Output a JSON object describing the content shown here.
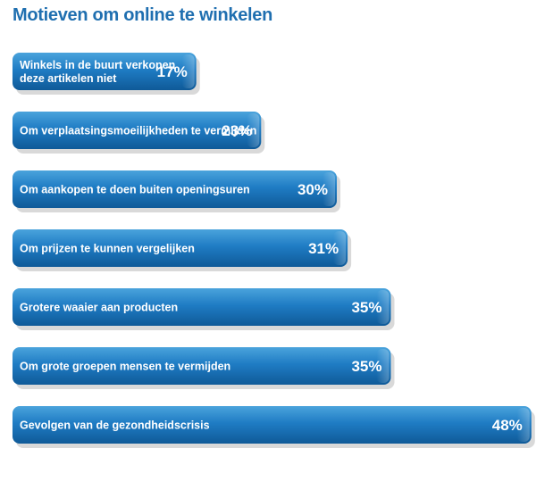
{
  "chart_data": {
    "type": "bar",
    "orientation": "horizontal",
    "title": "Motieven om online te winkelen",
    "categories": [
      [
        "Winkels in de buurt verkopen",
        "deze artikelen niet"
      ],
      [
        "Om verplaatsingsmoeilijkheden te vermijden"
      ],
      [
        "Om aankopen te doen buiten openingsuren"
      ],
      [
        "Om prijzen te kunnen vergelijken"
      ],
      [
        "Grotere waaier aan producten"
      ],
      [
        "Om grote groepen mensen te vermijden"
      ],
      [
        "Gevolgen van de gezondheidscrisis"
      ]
    ],
    "values": [
      17,
      23,
      30,
      31,
      35,
      35,
      48
    ],
    "value_labels": [
      "17%",
      "23%",
      "30%",
      "31%",
      "35%",
      "35%",
      "48%"
    ],
    "colors": {
      "title": "#1f6fb0",
      "bar_top": "#4aa3dc",
      "bar_mid": "#1f7cc4",
      "bar_bottom": "#0f5a98",
      "bar_shadow": "#b9b9b9",
      "text": "#ffffff"
    }
  }
}
